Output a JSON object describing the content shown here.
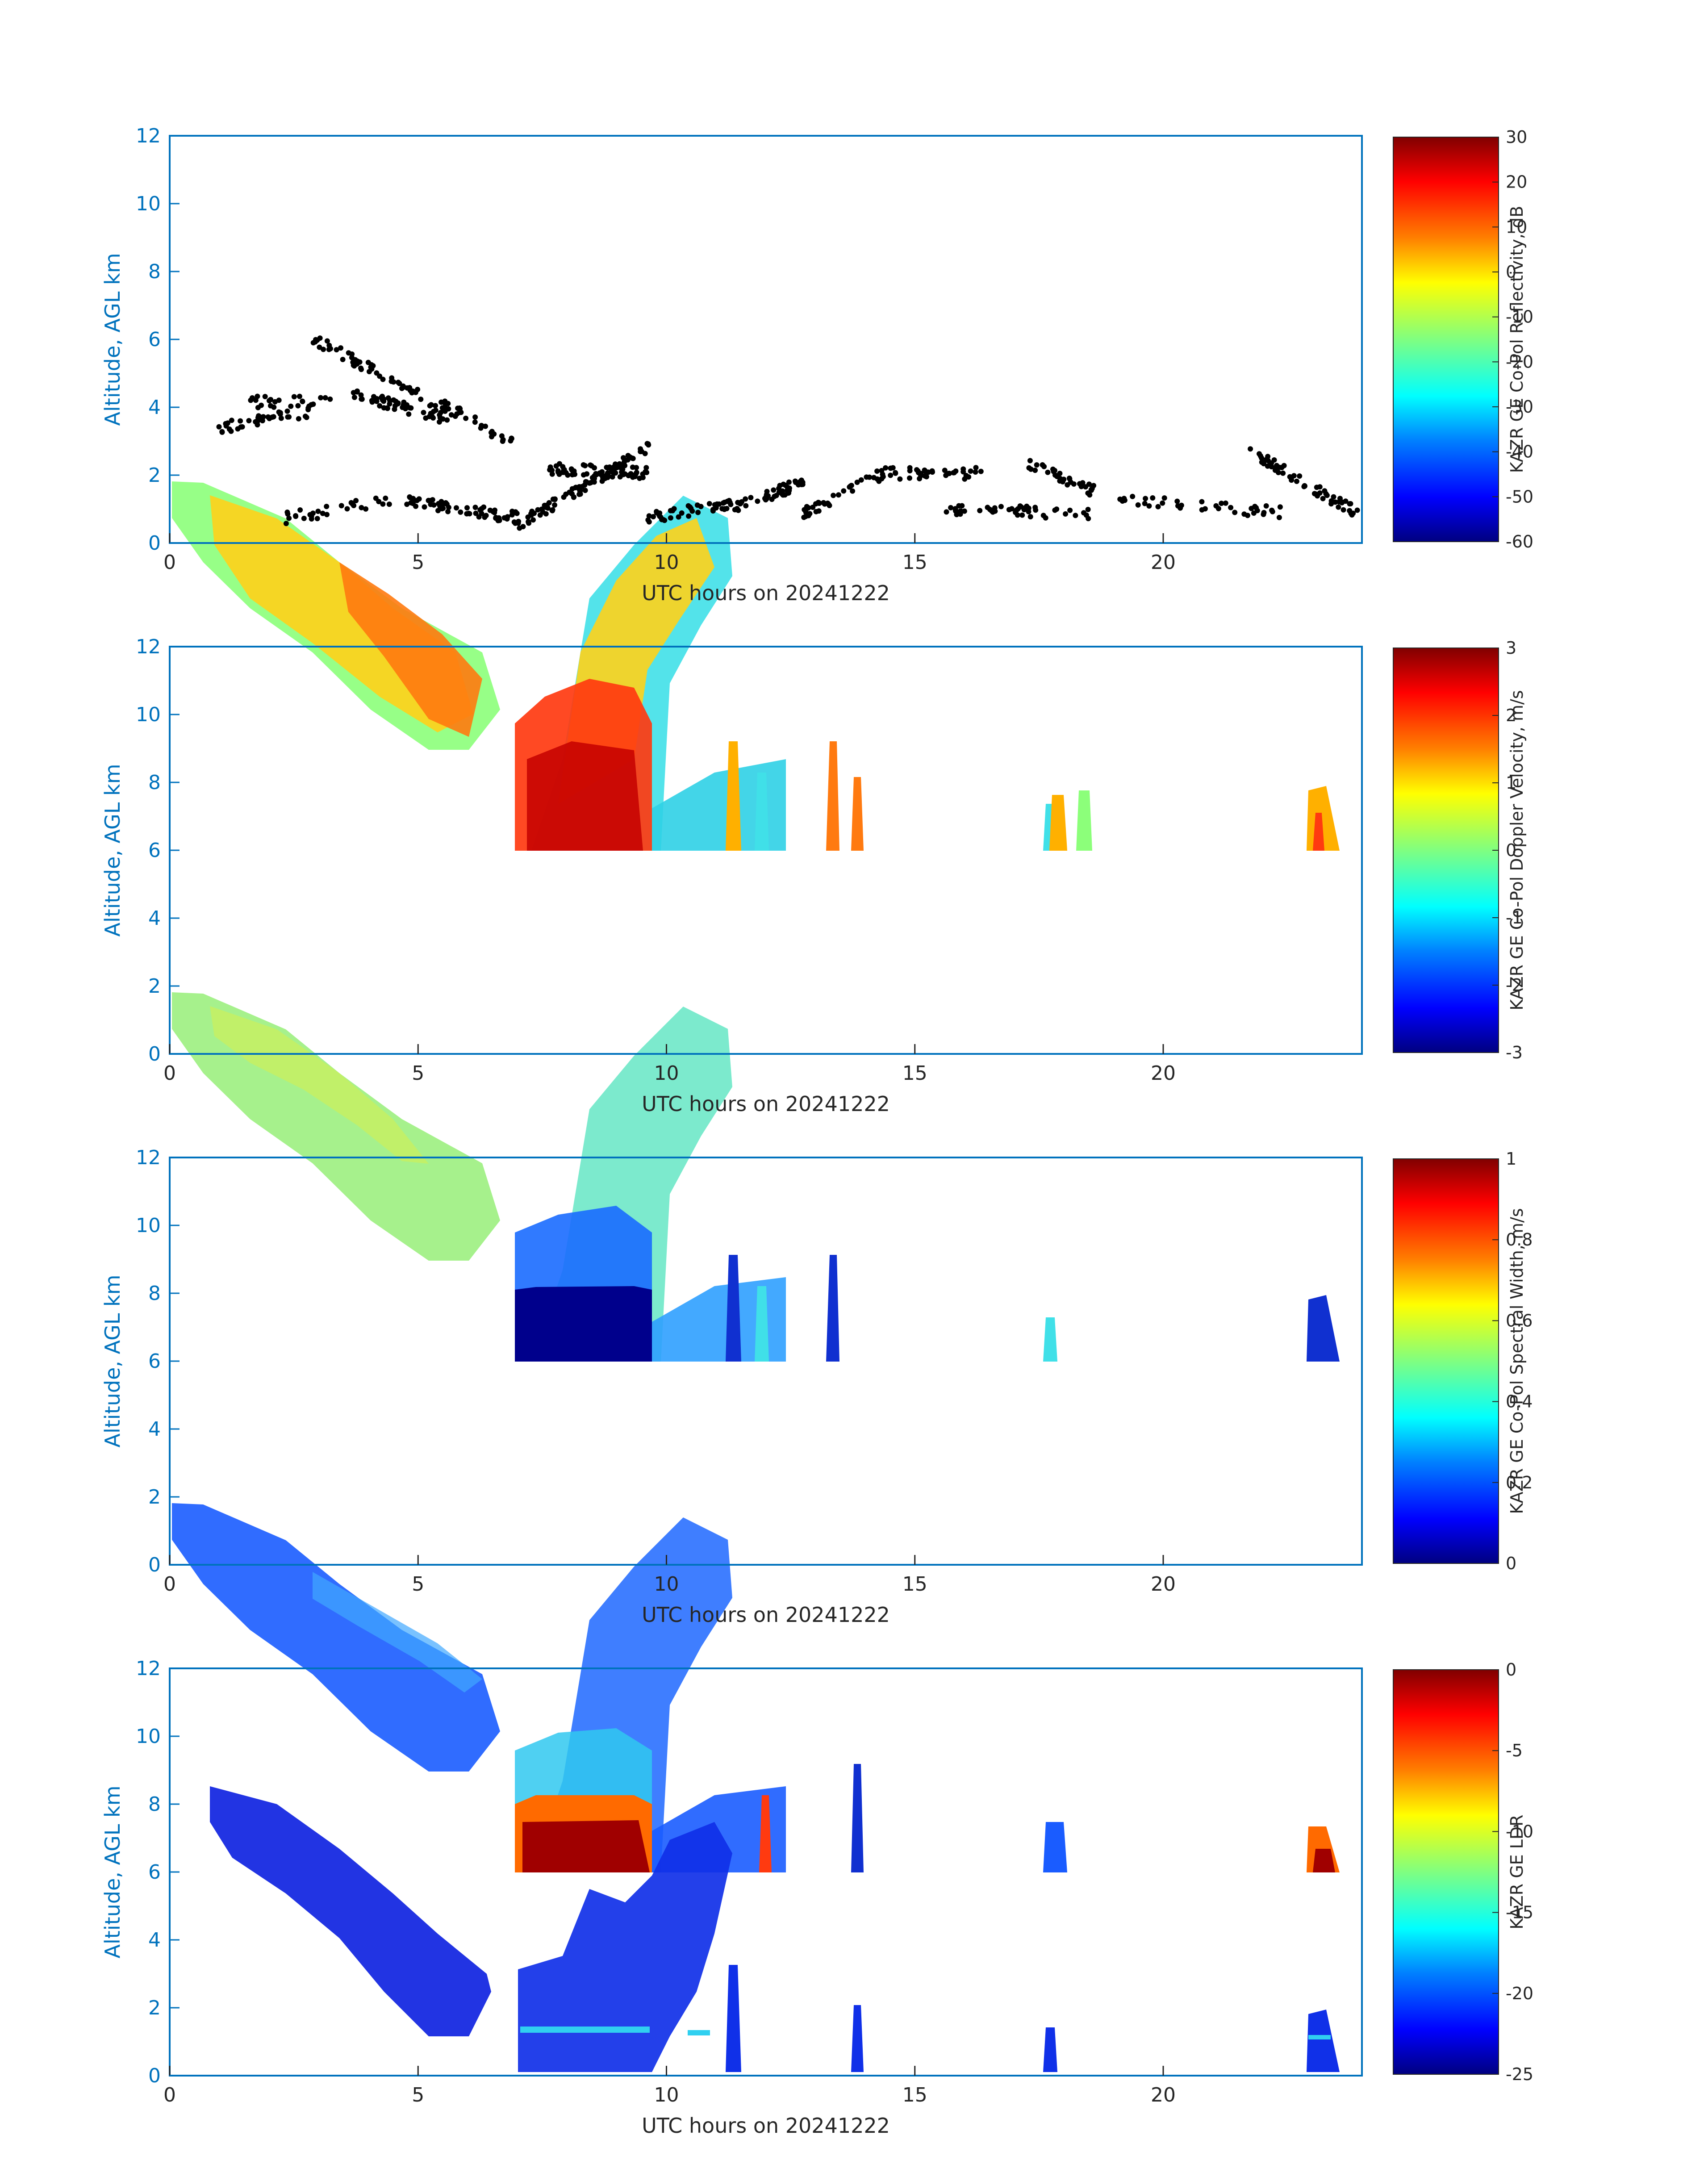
{
  "figure": {
    "x_tick_labels": [
      "0",
      "5",
      "10",
      "15",
      "20"
    ],
    "y_tick_labels": [
      "0",
      "2",
      "4",
      "6",
      "8",
      "10",
      "12"
    ],
    "colors": {
      "axis_blue": "#0072BD",
      "colorbar_text": "#262626",
      "ceilometer_dots": "#000000",
      "jet_colormap": [
        "#000080",
        "#0000ff",
        "#0080ff",
        "#00ffff",
        "#80ff80",
        "#ffff00",
        "#ff8000",
        "#ff0000",
        "#800000"
      ]
    }
  },
  "chart_data": [
    {
      "type": "heatmap",
      "xlabel": "UTC hours on 20241222",
      "ylabel": "Altitude, AGL km",
      "xlim": [
        0,
        24
      ],
      "ylim": [
        0,
        12
      ],
      "x_ticks": [
        0,
        5,
        10,
        15,
        20
      ],
      "y_ticks": [
        0,
        2,
        4,
        6,
        8,
        10,
        12
      ],
      "colorbar_label": "KAZR GE Co-Pol Reflectivity, dB",
      "colorbar_ticks": [
        "-60",
        "-50",
        "-40",
        "-30",
        "-20",
        "-10",
        "0",
        "10",
        "20",
        "30"
      ],
      "colorbar_range": [
        -60,
        30
      ],
      "colormap": "jet",
      "overlay": "black dots (cloud-base points)"
    },
    {
      "type": "heatmap",
      "xlabel": "UTC hours on 20241222",
      "ylabel": "Altitude, AGL km",
      "xlim": [
        0,
        24
      ],
      "ylim": [
        0,
        12
      ],
      "x_ticks": [
        0,
        5,
        10,
        15,
        20
      ],
      "y_ticks": [
        0,
        2,
        4,
        6,
        8,
        10,
        12
      ],
      "colorbar_label": "KAZR GE Co-Pol Doppler Velocity, m/s",
      "colorbar_ticks": [
        "-3",
        "-2",
        "-1",
        "0",
        "1",
        "2",
        "3"
      ],
      "colorbar_range": [
        -3,
        3
      ],
      "colormap": "jet"
    },
    {
      "type": "heatmap",
      "xlabel": "UTC hours on 20241222",
      "ylabel": "Altitude, AGL km",
      "xlim": [
        0,
        24
      ],
      "ylim": [
        0,
        12
      ],
      "x_ticks": [
        0,
        5,
        10,
        15,
        20
      ],
      "y_ticks": [
        0,
        2,
        4,
        6,
        8,
        10,
        12
      ],
      "colorbar_label": "KAZR GE Co-Pol Spectral Width, m/s",
      "colorbar_ticks": [
        "0",
        "0.2",
        "0.4",
        "0.6",
        "0.8",
        "1"
      ],
      "colorbar_range": [
        0,
        1
      ],
      "colormap": "jet"
    },
    {
      "type": "heatmap",
      "xlabel": "UTC hours on 20241222",
      "ylabel": "Altitude, AGL km",
      "xlim": [
        0,
        24
      ],
      "ylim": [
        0,
        12
      ],
      "x_ticks": [
        0,
        5,
        10,
        15,
        20
      ],
      "y_ticks": [
        0,
        2,
        4,
        6,
        8,
        10,
        12
      ],
      "colorbar_label": "KAZR GE LDR",
      "colorbar_ticks": [
        "-25",
        "-20",
        "-15",
        "-10",
        "-5",
        "0"
      ],
      "colorbar_range": [
        -25,
        0
      ],
      "colormap": "jet"
    }
  ]
}
